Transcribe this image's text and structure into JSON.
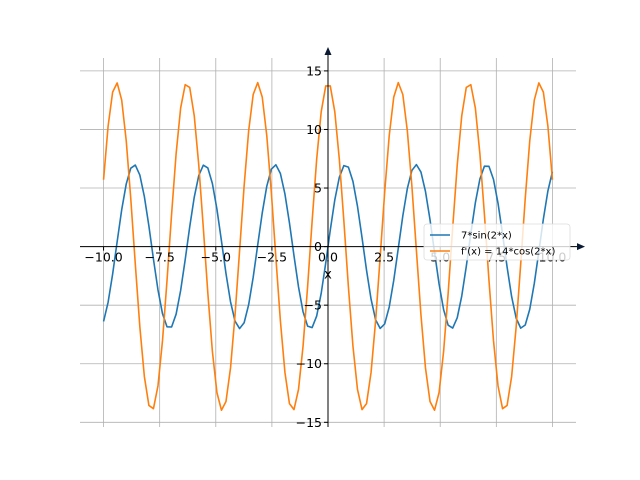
{
  "chart_data": {
    "type": "line",
    "title": "",
    "xlabel": "x",
    "ylabel": "",
    "xlim": [
      -11.05,
      11.05
    ],
    "ylim": [
      -15.4,
      16.1
    ],
    "grid": true,
    "legend_position": "center-right",
    "x_ticks": [
      -10,
      -7.5,
      -5,
      -2.5,
      0,
      2.5,
      5,
      7.5,
      10
    ],
    "x_tick_labels": [
      "−10.0",
      "−7.5",
      "−5.0",
      "−2.5",
      "0.0",
      "2.5",
      "5.0",
      "7.5",
      "10.0"
    ],
    "y_ticks": [
      -15,
      -10,
      -5,
      0,
      5,
      10,
      15
    ],
    "y_tick_labels": [
      "−15",
      "−10",
      "−5",
      "0",
      "5",
      "10",
      "15"
    ],
    "x_range": [
      -10,
      10
    ],
    "samples": 100,
    "series": [
      {
        "name": "7*sin(2*x)",
        "color": "#1f77b4",
        "amplitude": 7,
        "frequency": 2,
        "function": "sin"
      },
      {
        "name": "f'(x) = 14*cos(2*x)",
        "color": "#ff7f0e",
        "amplitude": 14,
        "frequency": 2,
        "function": "cos"
      }
    ]
  }
}
